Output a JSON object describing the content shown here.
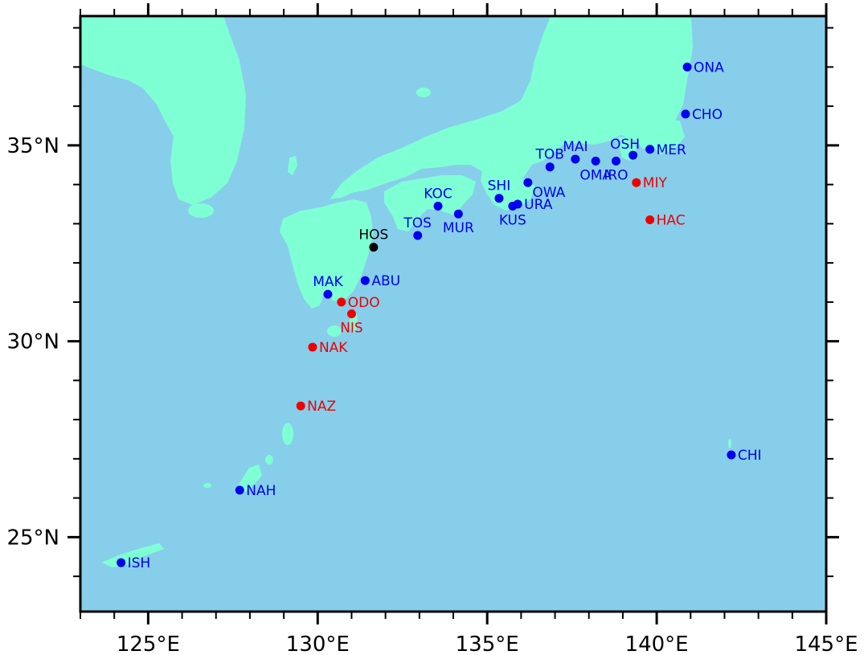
{
  "map": {
    "extent": {
      "lon_min": 123,
      "lon_max": 145,
      "lat_min": 23.1,
      "lat_max": 38.3
    },
    "colors": {
      "ocean": "#87ceeb",
      "land": "#7fffd4",
      "frame": "#000000"
    },
    "x_ticks": [
      {
        "lon": 125,
        "label": "125°E"
      },
      {
        "lon": 130,
        "label": "130°E"
      },
      {
        "lon": 135,
        "label": "135°E"
      },
      {
        "lon": 140,
        "label": "140°E"
      },
      {
        "lon": 145,
        "label": "145°E"
      }
    ],
    "y_ticks": [
      {
        "lat": 25,
        "label": "25°N"
      },
      {
        "lat": 30,
        "label": "30°N"
      },
      {
        "lat": 35,
        "label": "35°N"
      }
    ],
    "status_colors": {
      "blue": "#0000ee",
      "red": "#ee0000",
      "black": "#000000"
    },
    "stations": [
      {
        "code": "ONA",
        "lon": 140.9,
        "lat": 37.0,
        "status": "blue",
        "label_pos": "right"
      },
      {
        "code": "CHO",
        "lon": 140.85,
        "lat": 35.8,
        "status": "blue",
        "label_pos": "right"
      },
      {
        "code": "MER",
        "lon": 139.8,
        "lat": 34.9,
        "status": "blue",
        "label_pos": "right"
      },
      {
        "code": "OSH",
        "lon": 139.3,
        "lat": 34.75,
        "status": "blue",
        "label_pos": "above-left"
      },
      {
        "code": "IRO",
        "lon": 138.8,
        "lat": 34.6,
        "status": "blue",
        "label_pos": "below"
      },
      {
        "code": "MIY",
        "lon": 139.4,
        "lat": 34.05,
        "status": "red",
        "label_pos": "right"
      },
      {
        "code": "HAC",
        "lon": 139.8,
        "lat": 33.1,
        "status": "red",
        "label_pos": "right"
      },
      {
        "code": "MAI",
        "lon": 137.6,
        "lat": 34.65,
        "status": "blue",
        "label_pos": "above"
      },
      {
        "code": "OMA",
        "lon": 138.2,
        "lat": 34.6,
        "status": "blue",
        "label_pos": "below"
      },
      {
        "code": "TOB",
        "lon": 136.85,
        "lat": 34.45,
        "status": "blue",
        "label_pos": "above"
      },
      {
        "code": "OWA",
        "lon": 136.2,
        "lat": 34.05,
        "status": "blue",
        "label_pos": "below-right"
      },
      {
        "code": "SHI",
        "lon": 135.35,
        "lat": 33.65,
        "status": "blue",
        "label_pos": "above"
      },
      {
        "code": "URA",
        "lon": 135.9,
        "lat": 33.5,
        "status": "blue",
        "label_pos": "right"
      },
      {
        "code": "KUS",
        "lon": 135.75,
        "lat": 33.45,
        "status": "blue",
        "label_pos": "below"
      },
      {
        "code": "KOC",
        "lon": 133.55,
        "lat": 33.45,
        "status": "blue",
        "label_pos": "above"
      },
      {
        "code": "MUR",
        "lon": 134.15,
        "lat": 33.25,
        "status": "blue",
        "label_pos": "below"
      },
      {
        "code": "TOS",
        "lon": 132.95,
        "lat": 32.7,
        "status": "blue",
        "label_pos": "above"
      },
      {
        "code": "HOS",
        "lon": 131.65,
        "lat": 32.4,
        "status": "black",
        "label_pos": "above"
      },
      {
        "code": "ABU",
        "lon": 131.4,
        "lat": 31.55,
        "status": "blue",
        "label_pos": "right"
      },
      {
        "code": "MAK",
        "lon": 130.3,
        "lat": 31.2,
        "status": "blue",
        "label_pos": "above"
      },
      {
        "code": "ODO",
        "lon": 130.7,
        "lat": 31.0,
        "status": "red",
        "label_pos": "right"
      },
      {
        "code": "NIS",
        "lon": 131.0,
        "lat": 30.7,
        "status": "red",
        "label_pos": "below"
      },
      {
        "code": "NAK",
        "lon": 129.85,
        "lat": 29.85,
        "status": "red",
        "label_pos": "right"
      },
      {
        "code": "NAZ",
        "lon": 129.5,
        "lat": 28.35,
        "status": "red",
        "label_pos": "right"
      },
      {
        "code": "NAH",
        "lon": 127.7,
        "lat": 26.2,
        "status": "blue",
        "label_pos": "right"
      },
      {
        "code": "ISH",
        "lon": 124.2,
        "lat": 24.35,
        "status": "blue",
        "label_pos": "right"
      },
      {
        "code": "CHI",
        "lon": 142.2,
        "lat": 27.1,
        "status": "blue",
        "label_pos": "right"
      }
    ]
  }
}
